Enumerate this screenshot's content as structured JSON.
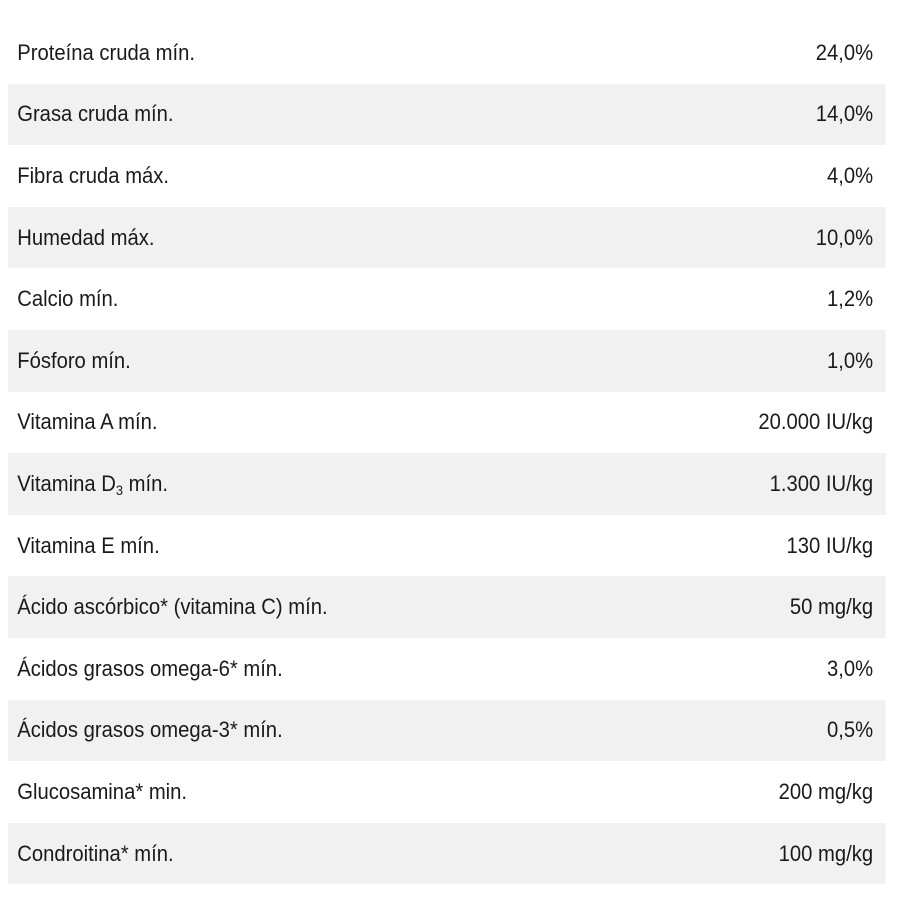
{
  "nutrition_table": {
    "rows": [
      {
        "label": "Proteína cruda mín.",
        "value": "24,0%"
      },
      {
        "label": "Grasa cruda mín.",
        "value": "14,0%"
      },
      {
        "label": "Fibra cruda máx.",
        "value": "4,0%"
      },
      {
        "label": "Humedad máx.",
        "value": "10,0%"
      },
      {
        "label": "Calcio mín.",
        "value": "1,2%"
      },
      {
        "label": "Fósforo mín.",
        "value": "1,0%"
      },
      {
        "label": "Vitamina A mín.",
        "value": "20.000 IU/kg"
      },
      {
        "label_prefix": "Vitamina D",
        "label_sub": "3",
        "label_suffix": " mín.",
        "value": "1.300 IU/kg"
      },
      {
        "label": "Vitamina E mín.",
        "value": "130 IU/kg"
      },
      {
        "label": "Ácido ascórbico* (vitamina C) mín.",
        "value": "50 mg/kg"
      },
      {
        "label": "Ácidos grasos omega-6* mín.",
        "value": "3,0%"
      },
      {
        "label": "Ácidos grasos omega-3* mín.",
        "value": "0,5%"
      },
      {
        "label": "Glucosamina* min.",
        "value": "200 mg/kg"
      },
      {
        "label": "Condroitina* mín.",
        "value": "100 mg/kg"
      }
    ]
  }
}
